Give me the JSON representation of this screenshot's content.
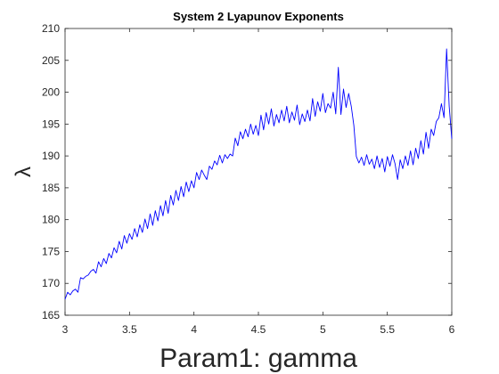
{
  "figure": {
    "background": "#ffffff",
    "axes_color": "#262626",
    "line_color": "#0000ff"
  },
  "chart_data": {
    "type": "line",
    "title": "System 2 Lyapunov Exponents",
    "xlabel": "Param1: gamma",
    "ylabel": "λ",
    "xlim": [
      3,
      6
    ],
    "ylim": [
      165,
      210
    ],
    "xticks": [
      3,
      3.5,
      4,
      4.5,
      5,
      5.5,
      6
    ],
    "xtick_labels": [
      "3",
      "3.5",
      "4",
      "4.5",
      "5",
      "5.5",
      "6"
    ],
    "yticks": [
      165,
      170,
      175,
      180,
      185,
      190,
      195,
      200,
      205,
      210
    ],
    "ytick_labels": [
      "165",
      "170",
      "175",
      "180",
      "185",
      "190",
      "195",
      "200",
      "205",
      "210"
    ],
    "grid": false,
    "box": true,
    "series": [
      {
        "color": "#0000ff",
        "x": [
          3.0,
          3.02,
          3.04,
          3.06,
          3.08,
          3.1,
          3.12,
          3.14,
          3.16,
          3.18,
          3.2,
          3.22,
          3.24,
          3.26,
          3.28,
          3.3,
          3.32,
          3.34,
          3.36,
          3.38,
          3.4,
          3.42,
          3.44,
          3.46,
          3.48,
          3.5,
          3.52,
          3.54,
          3.56,
          3.58,
          3.6,
          3.62,
          3.64,
          3.66,
          3.68,
          3.7,
          3.72,
          3.74,
          3.76,
          3.78,
          3.8,
          3.82,
          3.84,
          3.86,
          3.88,
          3.9,
          3.92,
          3.94,
          3.96,
          3.98,
          4.0,
          4.02,
          4.04,
          4.06,
          4.08,
          4.1,
          4.12,
          4.14,
          4.16,
          4.18,
          4.2,
          4.22,
          4.24,
          4.26,
          4.28,
          4.3,
          4.32,
          4.34,
          4.36,
          4.38,
          4.4,
          4.42,
          4.44,
          4.46,
          4.48,
          4.5,
          4.52,
          4.54,
          4.56,
          4.58,
          4.6,
          4.62,
          4.64,
          4.66,
          4.68,
          4.7,
          4.72,
          4.74,
          4.76,
          4.78,
          4.8,
          4.82,
          4.84,
          4.86,
          4.88,
          4.9,
          4.92,
          4.94,
          4.96,
          4.98,
          5.0,
          5.02,
          5.04,
          5.06,
          5.08,
          5.1,
          5.12,
          5.14,
          5.16,
          5.18,
          5.2,
          5.22,
          5.24,
          5.26,
          5.28,
          5.3,
          5.32,
          5.34,
          5.36,
          5.38,
          5.4,
          5.42,
          5.44,
          5.46,
          5.48,
          5.5,
          5.52,
          5.54,
          5.56,
          5.58,
          5.6,
          5.62,
          5.64,
          5.66,
          5.68,
          5.7,
          5.72,
          5.74,
          5.76,
          5.78,
          5.8,
          5.82,
          5.84,
          5.86,
          5.88,
          5.9,
          5.92,
          5.94,
          5.96,
          5.98,
          6.0
        ],
        "y": [
          167.5,
          168.6,
          168.2,
          168.8,
          169.1,
          168.6,
          170.9,
          170.7,
          171.1,
          171.3,
          171.9,
          172.2,
          171.6,
          173.4,
          172.6,
          173.9,
          173.1,
          174.7,
          174.0,
          175.6,
          174.8,
          176.6,
          175.4,
          177.5,
          176.3,
          177.8,
          176.9,
          178.6,
          177.3,
          179.2,
          178.0,
          180.1,
          178.6,
          180.9,
          179.1,
          181.4,
          179.8,
          182.2,
          180.6,
          183.0,
          181.0,
          183.8,
          182.3,
          184.6,
          183.0,
          185.2,
          183.6,
          185.9,
          184.4,
          186.1,
          185.0,
          187.4,
          186.3,
          187.8,
          187.0,
          186.3,
          188.4,
          187.9,
          189.2,
          188.6,
          190.1,
          188.9,
          190.2,
          189.6,
          190.3,
          190.0,
          192.8,
          191.6,
          193.8,
          192.7,
          194.2,
          193.0,
          195.0,
          193.4,
          194.8,
          193.2,
          196.4,
          194.1,
          196.8,
          195.0,
          197.4,
          194.7,
          196.5,
          195.2,
          197.2,
          195.5,
          197.8,
          195.2,
          196.9,
          195.6,
          198.0,
          194.9,
          196.6,
          195.4,
          197.2,
          195.5,
          199.0,
          196.2,
          198.5,
          197.0,
          199.8,
          196.8,
          198.2,
          197.5,
          200.0,
          196.6,
          203.9,
          196.5,
          200.5,
          197.6,
          199.8,
          197.8,
          194.8,
          189.9,
          188.9,
          189.8,
          188.5,
          190.2,
          188.7,
          189.5,
          188.0,
          190.0,
          188.2,
          189.6,
          187.5,
          189.9,
          188.4,
          190.2,
          188.8,
          186.3,
          189.4,
          188.0,
          190.0,
          188.5,
          190.8,
          188.6,
          191.2,
          189.6,
          192.4,
          190.3,
          193.7,
          191.2,
          194.2,
          193.2,
          195.4,
          196.0,
          198.2,
          196.0,
          206.8,
          197.8,
          192.7
        ]
      }
    ]
  }
}
